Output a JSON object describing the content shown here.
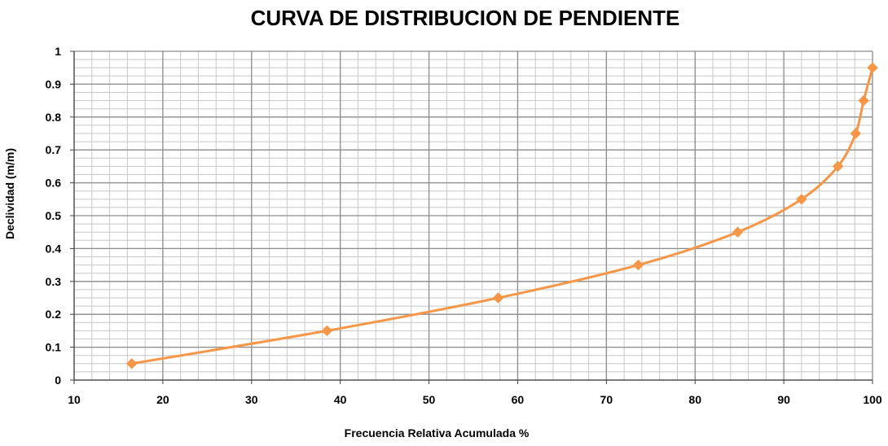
{
  "chart_data": {
    "type": "line",
    "title": "CURVA DE DISTRIBUCION DE PENDIENTE",
    "xlabel": "Frecuencia Relativa Acumulada  %",
    "ylabel": "Declividad (m/m)",
    "xlim": [
      10,
      100
    ],
    "ylim": [
      0,
      1
    ],
    "x_ticks": [
      "10",
      "20",
      "30",
      "40",
      "50",
      "60",
      "70",
      "80",
      "90",
      "100"
    ],
    "y_ticks": [
      "0",
      "0.1",
      "0.2",
      "0.3",
      "0.4",
      "0.5",
      "0.6",
      "0.7",
      "0.8",
      "0.9",
      "1"
    ],
    "grid": true,
    "legend": "none",
    "marker": "diamond",
    "smooth": true,
    "series": [
      {
        "color": "#F79646",
        "x": [
          16.5,
          38.5,
          57.8,
          73.6,
          84.8,
          92.0,
          96.1,
          98.1,
          99.0,
          100.0
        ],
        "y": [
          0.05,
          0.15,
          0.25,
          0.35,
          0.45,
          0.55,
          0.65,
          0.75,
          0.85,
          0.95
        ]
      }
    ],
    "colors": {
      "major_grid": "#8C8C8C",
      "minor_grid": "#C8C8C8",
      "axis": "#404040"
    }
  }
}
